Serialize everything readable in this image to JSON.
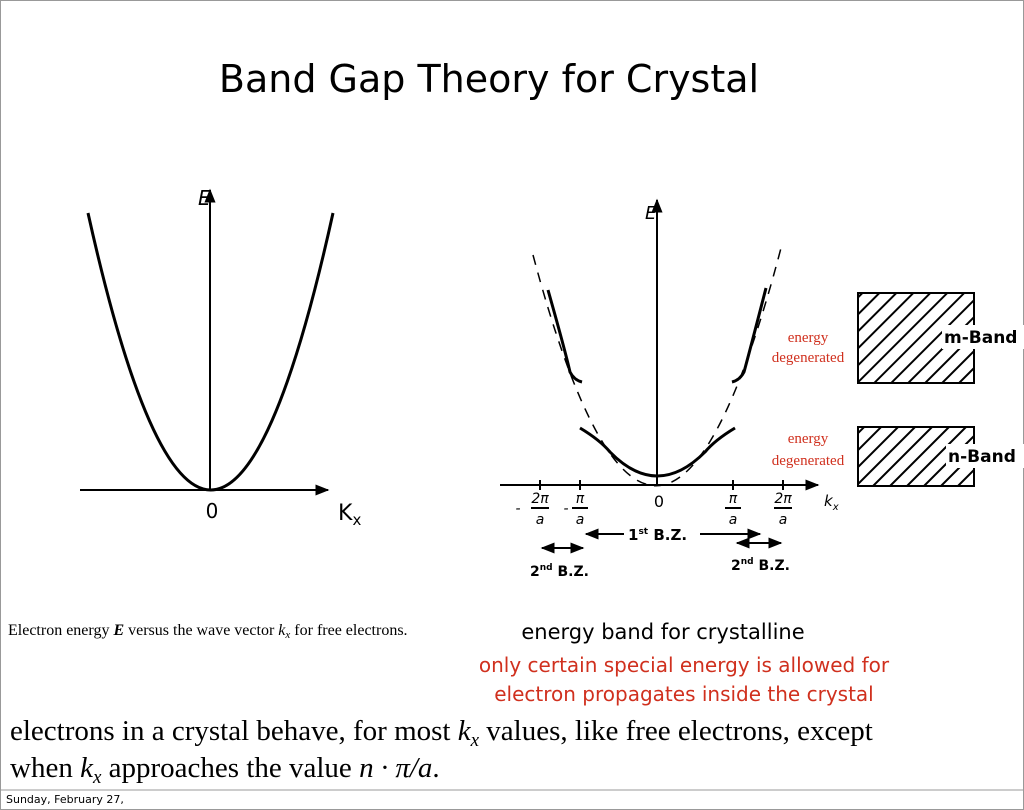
{
  "title": "Band Gap Theory for Crystal",
  "free_electron_diagram": {
    "y_axis": "E",
    "origin": "0",
    "x_axis": "K",
    "x_axis_sub": "x",
    "caption": [
      "Electron energy ",
      "E",
      " versus the wave vector ",
      "k",
      "x",
      " for free electrons."
    ]
  },
  "crystal_diagram": {
    "y_axis": "E",
    "origin": "0",
    "x_axis": "k",
    "x_axis_sub": "x",
    "ticks": [
      {
        "sign": "-",
        "numerator": "2π",
        "denominator": "a"
      },
      {
        "sign": "-",
        "numerator": "π",
        "denominator": "a"
      },
      {
        "numerator": "π",
        "denominator": "a"
      },
      {
        "numerator": "2π",
        "denominator": "a"
      }
    ],
    "first_zone": [
      "1",
      "st",
      " B.Z."
    ],
    "second_zone_left": [
      "2",
      "nd",
      " B.Z."
    ],
    "second_zone_right": [
      "2",
      "nd",
      " B.Z."
    ],
    "bands": [
      "m-Band",
      "n-Band"
    ],
    "annotations": [
      [
        "energy",
        "degenerated"
      ],
      [
        "energy",
        "degenerated"
      ]
    ],
    "caption": "energy band for crystalline",
    "note": [
      "only certain special energy is allowed for",
      "electron propagates inside the crystal"
    ]
  },
  "statement": [
    [
      "electrons in a crystal behave, for most ",
      "k",
      "x",
      " values, like free electrons, except"
    ],
    [
      "when ",
      "k",
      "x",
      " approaches the value ",
      "n · π/a",
      "."
    ]
  ],
  "footer": "Sunday, February 27,"
}
